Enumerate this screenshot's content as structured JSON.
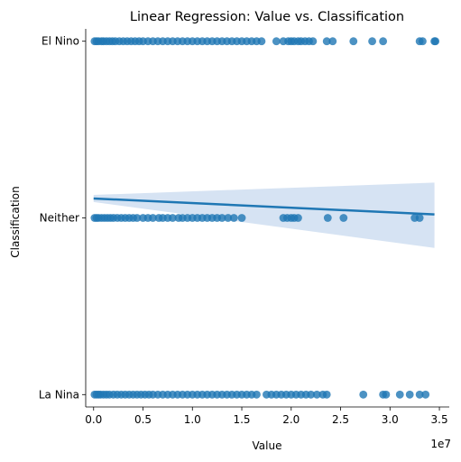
{
  "chart_data": {
    "type": "scatter",
    "title": "Linear Regression: Value vs. Classification",
    "xlabel": "Value",
    "ylabel": "Classification",
    "x_scale_label": "1e7",
    "x_ticks": [
      0.0,
      0.5,
      1.0,
      1.5,
      2.0,
      2.5,
      3.0,
      3.5
    ],
    "x_tick_labels": [
      "0.0",
      "0.5",
      "1.0",
      "1.5",
      "2.0",
      "2.5",
      "3.0",
      "3.5"
    ],
    "xlim": [
      -0.08,
      3.6
    ],
    "y_categories": [
      "La Nina",
      "Neither",
      "El Nino"
    ],
    "y_values": [
      0,
      1,
      2
    ],
    "ylim": [
      -0.07,
      2.07
    ],
    "grid": false,
    "colors": {
      "points": "#1f77b4",
      "line": "#1f77b4",
      "band": "#aec7e8"
    },
    "points": {
      "El Nino": [
        0.01,
        0.03,
        0.05,
        0.08,
        0.1,
        0.13,
        0.16,
        0.19,
        0.22,
        0.26,
        0.3,
        0.34,
        0.38,
        0.42,
        0.46,
        0.5,
        0.55,
        0.6,
        0.65,
        0.7,
        0.75,
        0.8,
        0.85,
        0.9,
        0.95,
        1.0,
        1.05,
        1.1,
        1.15,
        1.2,
        1.25,
        1.3,
        1.35,
        1.4,
        1.45,
        1.5,
        1.55,
        1.6,
        1.65,
        1.7,
        1.85,
        1.92,
        1.97,
        2.0,
        2.03,
        2.07,
        2.1,
        2.14,
        2.18,
        2.22,
        2.36,
        2.42,
        2.63,
        2.82,
        2.93,
        3.3,
        3.33,
        3.45,
        3.46
      ],
      "Neither": [
        0.01,
        0.03,
        0.05,
        0.08,
        0.11,
        0.14,
        0.17,
        0.2,
        0.24,
        0.28,
        0.32,
        0.36,
        0.4,
        0.44,
        0.5,
        0.55,
        0.6,
        0.66,
        0.7,
        0.75,
        0.8,
        0.86,
        0.9,
        0.95,
        1.0,
        1.05,
        1.1,
        1.15,
        1.2,
        1.25,
        1.3,
        1.36,
        1.42,
        1.5,
        1.92,
        1.96,
        2.0,
        2.03,
        2.07,
        2.37,
        2.53,
        3.25,
        3.3
      ],
      "La Nina": [
        0.01,
        0.03,
        0.05,
        0.07,
        0.1,
        0.13,
        0.16,
        0.2,
        0.24,
        0.28,
        0.32,
        0.36,
        0.4,
        0.44,
        0.48,
        0.52,
        0.56,
        0.6,
        0.65,
        0.7,
        0.75,
        0.8,
        0.85,
        0.9,
        0.95,
        1.0,
        1.05,
        1.1,
        1.15,
        1.2,
        1.25,
        1.3,
        1.35,
        1.4,
        1.45,
        1.5,
        1.55,
        1.6,
        1.65,
        1.75,
        1.8,
        1.85,
        1.9,
        1.95,
        2.0,
        2.05,
        2.1,
        2.15,
        2.2,
        2.26,
        2.32,
        2.36,
        2.73,
        2.93,
        2.96,
        3.1,
        3.2,
        3.3,
        3.36
      ]
    },
    "regression": {
      "x_range": [
        0.0,
        3.45
      ],
      "y_start": 1.11,
      "y_end": 1.02,
      "ci_at_end": [
        0.83,
        1.2
      ],
      "ci_at_start": [
        1.09,
        1.13
      ]
    }
  }
}
